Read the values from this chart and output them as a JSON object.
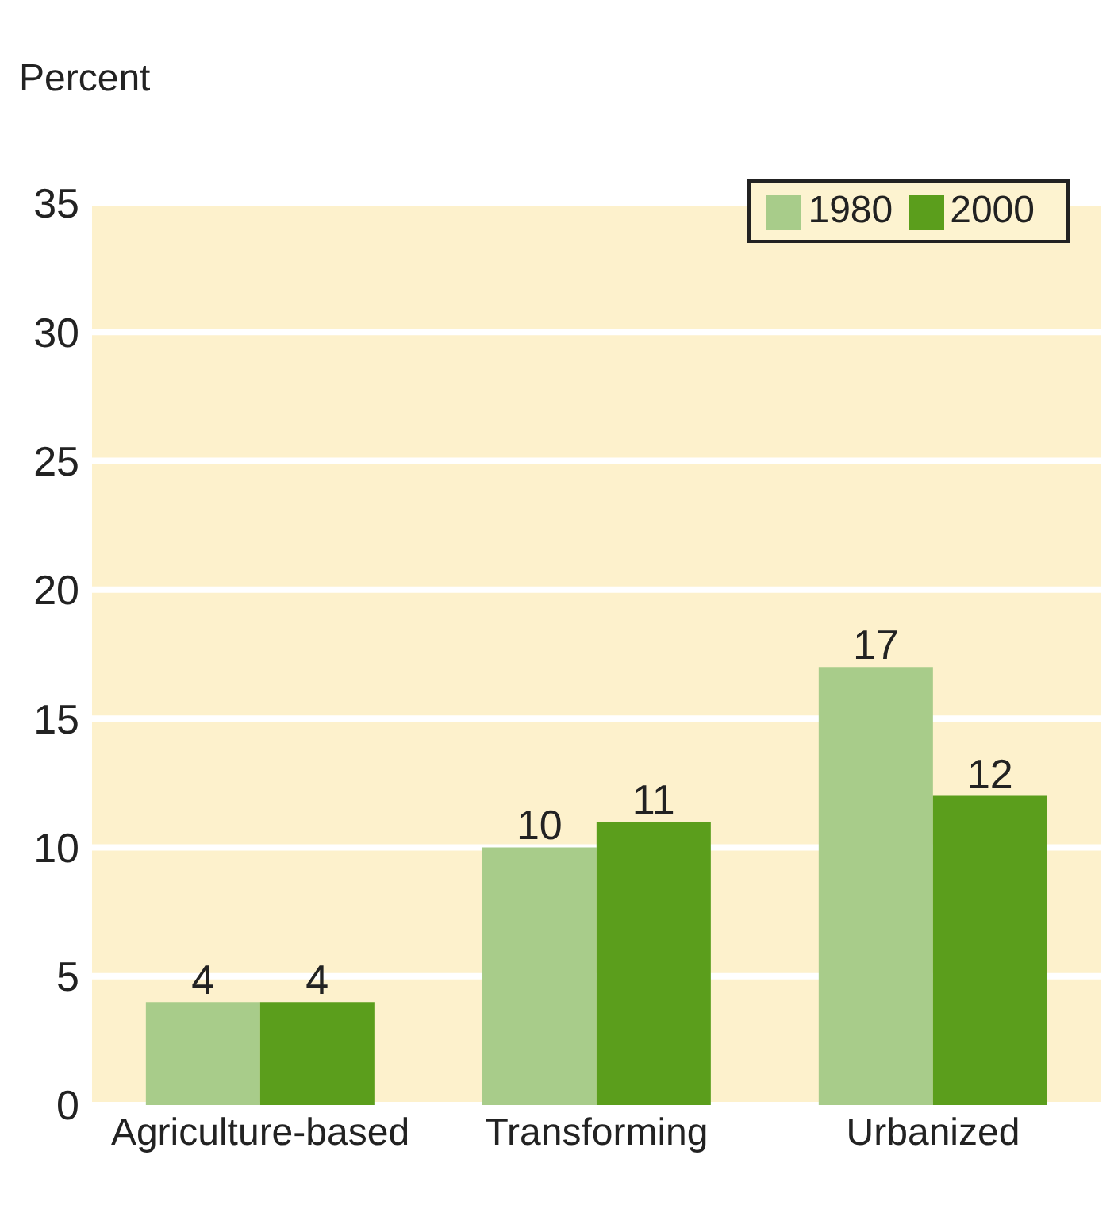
{
  "chart_data": {
    "type": "bar",
    "ylabel": "Percent",
    "categories": [
      "Agriculture-based",
      "Transforming",
      "Urbanized"
    ],
    "series": [
      {
        "name": "1980",
        "color": "#a8cc8a",
        "values": [
          4,
          10,
          17
        ]
      },
      {
        "name": "2000",
        "color": "#5b9e1c",
        "values": [
          4,
          11,
          12
        ]
      }
    ],
    "ylim": [
      0,
      35
    ],
    "yticks": [
      0,
      5,
      10,
      15,
      20,
      25,
      30,
      35
    ],
    "grid": "y",
    "legend": "top right",
    "data_labels": true
  }
}
